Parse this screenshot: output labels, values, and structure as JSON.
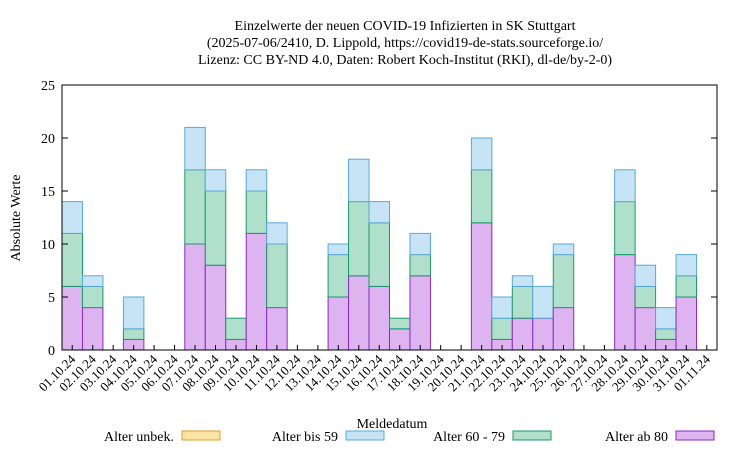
{
  "chart_data": {
    "type": "bar",
    "stacked": true,
    "title_lines": [
      "Einzelwerte der neuen COVID-19 Infizierten in SK Stuttgart",
      "(2025-07-06/2410, D. Lippold, https://covid19-de-stats.sourceforge.io/",
      "Lizenz: CC BY-ND 4.0, Daten: Robert Koch-Institut (RKI), dl-de/by-2-0)"
    ],
    "xlabel": "Meldedatum",
    "ylabel": "Absolute Werte",
    "ylim": [
      0,
      25
    ],
    "yticks": [
      0,
      5,
      10,
      15,
      20,
      25
    ],
    "grid": false,
    "legend_position": "bottom",
    "categories": [
      "01.10.24",
      "02.10.24",
      "03.10.24",
      "04.10.24",
      "05.10.24",
      "06.10.24",
      "07.10.24",
      "08.10.24",
      "09.10.24",
      "10.10.24",
      "11.10.24",
      "12.10.24",
      "13.10.24",
      "14.10.24",
      "15.10.24",
      "16.10.24",
      "17.10.24",
      "18.10.24",
      "19.10.24",
      "20.10.24",
      "21.10.24",
      "22.10.24",
      "23.10.24",
      "24.10.24",
      "25.10.24",
      "26.10.24",
      "27.10.24",
      "28.10.24",
      "29.10.24",
      "30.10.24",
      "31.10.24",
      "01.11.24"
    ],
    "series": [
      {
        "name": "Alter unbek.",
        "fill": "#fbe3a6",
        "stroke": "#e0a020",
        "values": [
          0,
          0,
          0,
          0,
          0,
          0,
          0,
          0,
          0,
          0,
          0,
          0,
          0,
          0,
          0,
          0,
          0,
          0,
          0,
          0,
          0,
          0,
          0,
          0,
          0,
          0,
          0,
          0,
          0,
          0,
          0,
          0
        ]
      },
      {
        "name": "Alter bis 59",
        "fill": "#c6e4f6",
        "stroke": "#5aa9d6",
        "values": [
          3,
          1,
          0,
          3,
          0,
          0,
          4,
          2,
          0,
          2,
          2,
          0,
          0,
          1,
          4,
          2,
          0,
          2,
          0,
          0,
          3,
          2,
          1,
          3,
          1,
          0,
          0,
          3,
          2,
          2,
          2,
          0
        ]
      },
      {
        "name": "Alter 60 - 79",
        "fill": "#b0e0cc",
        "stroke": "#1a9a6e",
        "values": [
          5,
          2,
          0,
          1,
          0,
          0,
          7,
          7,
          2,
          4,
          6,
          0,
          0,
          4,
          7,
          6,
          1,
          2,
          0,
          0,
          5,
          2,
          3,
          0,
          5,
          0,
          0,
          5,
          2,
          1,
          2,
          0
        ]
      },
      {
        "name": "Alter ab 80",
        "fill": "#ddb4f0",
        "stroke": "#8a2bbf",
        "values": [
          6,
          4,
          0,
          1,
          0,
          0,
          10,
          8,
          1,
          11,
          4,
          0,
          0,
          5,
          7,
          6,
          2,
          7,
          0,
          0,
          12,
          1,
          3,
          3,
          4,
          0,
          0,
          9,
          4,
          1,
          5,
          0
        ]
      }
    ]
  }
}
